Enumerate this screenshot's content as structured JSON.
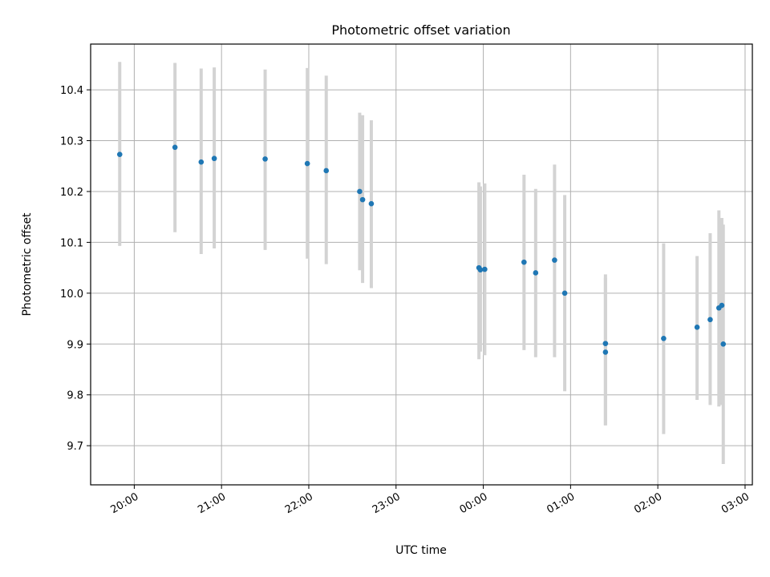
{
  "chart_data": {
    "type": "scatter",
    "title": "Photometric offset variation",
    "xlabel": "UTC time",
    "ylabel": "Photometric offset",
    "x_axis_kind": "time",
    "xlim": [
      "19:30",
      "03:05"
    ],
    "ylim": [
      9.623,
      10.49
    ],
    "xticks": [
      "20:00",
      "21:00",
      "22:00",
      "23:00",
      "00:00",
      "01:00",
      "02:00",
      "03:00"
    ],
    "yticks": [
      "9.7",
      "9.8",
      "9.9",
      "10.0",
      "10.1",
      "10.2",
      "10.3",
      "10.4"
    ],
    "grid": true,
    "legend": "none",
    "colors": {
      "point": "#1f77b4",
      "errorbar": "#d3d3d3",
      "grid": "#b0b0b0"
    },
    "series": [
      {
        "points": [
          {
            "x": "19:50",
            "y": 10.273,
            "ylow": 10.093,
            "yhigh": 10.455
          },
          {
            "x": "20:28",
            "y": 10.287,
            "ylow": 10.12,
            "yhigh": 10.453
          },
          {
            "x": "20:46",
            "y": 10.258,
            "ylow": 10.077,
            "yhigh": 10.442
          },
          {
            "x": "20:55",
            "y": 10.265,
            "ylow": 10.088,
            "yhigh": 10.444
          },
          {
            "x": "21:30",
            "y": 10.264,
            "ylow": 10.085,
            "yhigh": 10.44
          },
          {
            "x": "21:59",
            "y": 10.255,
            "ylow": 10.068,
            "yhigh": 10.443
          },
          {
            "x": "22:12",
            "y": 10.241,
            "ylow": 10.057,
            "yhigh": 10.428
          },
          {
            "x": "22:35",
            "y": 10.2,
            "ylow": 10.045,
            "yhigh": 10.355
          },
          {
            "x": "22:37",
            "y": 10.184,
            "ylow": 10.02,
            "yhigh": 10.35
          },
          {
            "x": "22:43",
            "y": 10.176,
            "ylow": 10.01,
            "yhigh": 10.34
          },
          {
            "x": "23:57",
            "y": 10.05,
            "ylow": 9.87,
            "yhigh": 10.218
          },
          {
            "x": "23:58",
            "y": 10.046,
            "ylow": 9.885,
            "yhigh": 10.21
          },
          {
            "x": "00:01",
            "y": 10.047,
            "ylow": 9.878,
            "yhigh": 10.216
          },
          {
            "x": "00:28",
            "y": 10.061,
            "ylow": 9.888,
            "yhigh": 10.233
          },
          {
            "x": "00:36",
            "y": 10.04,
            "ylow": 9.874,
            "yhigh": 10.205
          },
          {
            "x": "00:49",
            "y": 10.065,
            "ylow": 9.874,
            "yhigh": 10.253
          },
          {
            "x": "00:56",
            "y": 10.0,
            "ylow": 9.807,
            "yhigh": 10.193
          },
          {
            "x": "01:24",
            "y": 9.901,
            "ylow": 9.74,
            "yhigh": 10.037
          },
          {
            "x": "01:24",
            "y": 9.884,
            "ylow": 9.74,
            "yhigh": 10.03
          },
          {
            "x": "02:04",
            "y": 9.911,
            "ylow": 9.723,
            "yhigh": 10.098
          },
          {
            "x": "02:27",
            "y": 9.933,
            "ylow": 9.79,
            "yhigh": 10.073
          },
          {
            "x": "02:36",
            "y": 9.948,
            "ylow": 9.78,
            "yhigh": 10.118
          },
          {
            "x": "02:42",
            "y": 9.971,
            "ylow": 9.777,
            "yhigh": 10.163
          },
          {
            "x": "02:44",
            "y": 9.976,
            "ylow": 9.78,
            "yhigh": 10.148
          },
          {
            "x": "02:45",
            "y": 9.9,
            "ylow": 9.664,
            "yhigh": 10.135
          }
        ]
      }
    ]
  }
}
